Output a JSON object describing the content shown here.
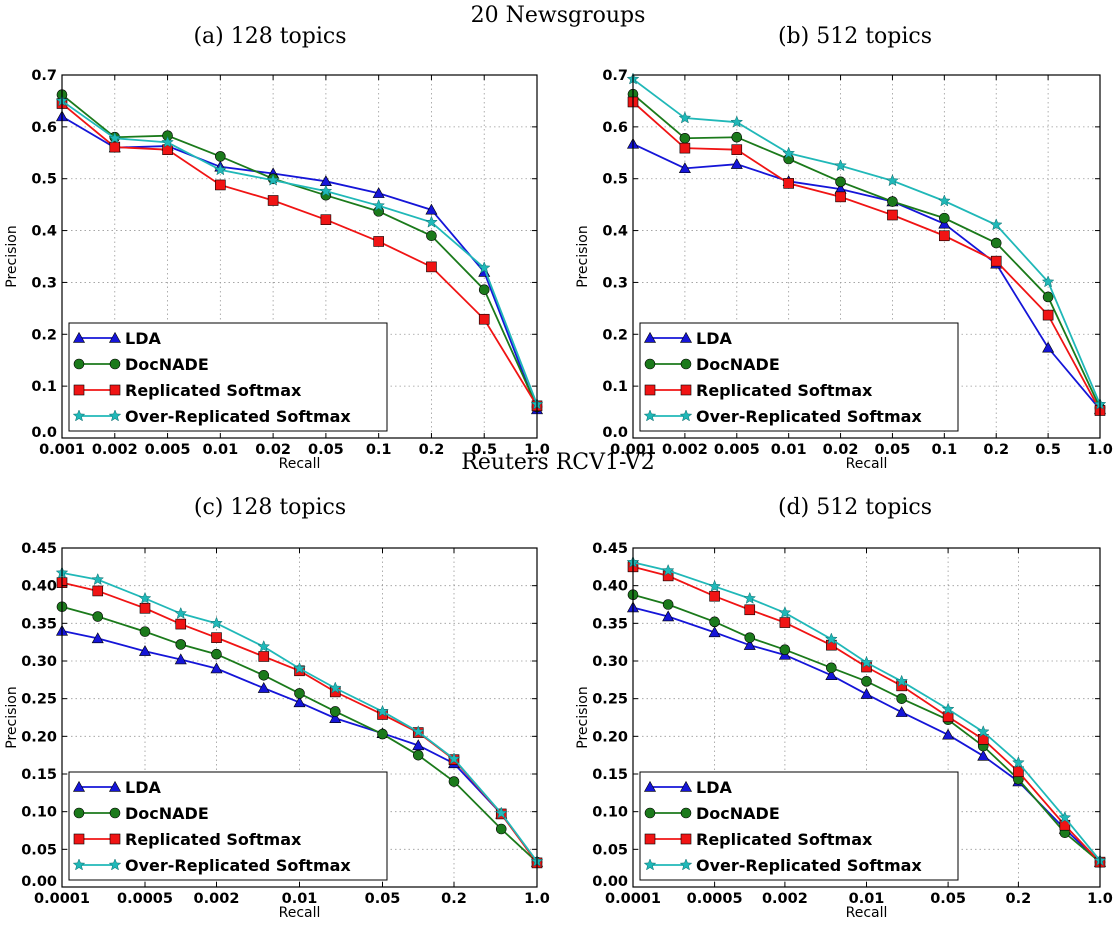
{
  "group_titles": [
    "20 Newsgroups",
    "Reuters RCV1-V2"
  ],
  "chart_data": [
    {
      "type": "line",
      "title": "(a) 128 topics",
      "xlabel": "Recall",
      "ylabel": "Precision",
      "x": [
        "0.001",
        "0.002",
        "0.005",
        "0.01",
        "0.02",
        "0.05",
        "0.1",
        "0.2",
        "0.5",
        "1.0"
      ],
      "ylim": [
        0,
        0.7
      ],
      "yticks": [
        "0.0",
        "0.1",
        "0.2",
        "0.3",
        "0.4",
        "0.5",
        "0.6",
        "0.7"
      ],
      "grid": true,
      "legend_position": "lower-left",
      "series": [
        {
          "name": "LDA",
          "color": "#1515d8",
          "marker": "triangle",
          "values": [
            0.62,
            0.56,
            0.563,
            0.523,
            0.51,
            0.495,
            0.472,
            0.44,
            0.32,
            0.055
          ]
        },
        {
          "name": "DocNADE",
          "color": "#1b7a1b",
          "marker": "circle",
          "values": [
            0.662,
            0.58,
            0.583,
            0.543,
            0.5,
            0.468,
            0.437,
            0.39,
            0.286,
            0.06
          ]
        },
        {
          "name": "Replicated Softmax",
          "color": "#f01414",
          "marker": "square",
          "values": [
            0.645,
            0.561,
            0.556,
            0.488,
            0.458,
            0.421,
            0.379,
            0.33,
            0.229,
            0.062
          ]
        },
        {
          "name": "Over-Replicated Softmax",
          "color": "#20b8b8",
          "marker": "star",
          "values": [
            0.65,
            0.578,
            0.57,
            0.517,
            0.497,
            0.476,
            0.448,
            0.416,
            0.328,
            0.065
          ]
        }
      ]
    },
    {
      "type": "line",
      "title": "(b) 512 topics",
      "xlabel": "Recall",
      "ylabel": "Precision",
      "x": [
        "0.001",
        "0.002",
        "0.005",
        "0.01",
        "0.02",
        "0.05",
        "0.1",
        "0.2",
        "0.5",
        "1.0"
      ],
      "ylim": [
        0,
        0.7
      ],
      "yticks": [
        "0.0",
        "0.1",
        "0.2",
        "0.3",
        "0.4",
        "0.5",
        "0.6",
        "0.7"
      ],
      "grid": true,
      "legend_position": "lower-left",
      "series": [
        {
          "name": "LDA",
          "color": "#1515d8",
          "marker": "triangle",
          "values": [
            0.567,
            0.52,
            0.528,
            0.495,
            0.48,
            0.456,
            0.413,
            0.336,
            0.174,
            0.055
          ]
        },
        {
          "name": "DocNADE",
          "color": "#1b7a1b",
          "marker": "circle",
          "values": [
            0.663,
            0.578,
            0.58,
            0.538,
            0.494,
            0.456,
            0.424,
            0.376,
            0.272,
            0.058
          ]
        },
        {
          "name": "Replicated Softmax",
          "color": "#f01414",
          "marker": "square",
          "values": [
            0.648,
            0.559,
            0.556,
            0.491,
            0.465,
            0.43,
            0.39,
            0.341,
            0.237,
            0.053
          ]
        },
        {
          "name": "Over-Replicated Softmax",
          "color": "#20b8b8",
          "marker": "star",
          "values": [
            0.692,
            0.617,
            0.609,
            0.549,
            0.525,
            0.496,
            0.457,
            0.411,
            0.301,
            0.065
          ]
        }
      ]
    },
    {
      "type": "line",
      "title": "(c) 128 topics",
      "xlabel": "Recall",
      "ylabel": "Precision",
      "x": [
        0.0001,
        0.0002,
        0.0005,
        0.001,
        0.002,
        0.005,
        0.01,
        0.02,
        0.05,
        0.1,
        0.2,
        0.5,
        1.0
      ],
      "xticks": [
        "0.0001",
        "0.0005",
        "0.002",
        "0.01",
        "0.05",
        "0.2",
        "1.0"
      ],
      "ylim": [
        0,
        0.45
      ],
      "yticks": [
        "0.00",
        "0.05",
        "0.10",
        "0.15",
        "0.20",
        "0.25",
        "0.30",
        "0.35",
        "0.40",
        "0.45"
      ],
      "grid": true,
      "legend_position": "lower-left",
      "series": [
        {
          "name": "LDA",
          "color": "#1515d8",
          "marker": "triangle",
          "values": [
            0.34,
            0.33,
            0.313,
            0.302,
            0.29,
            0.264,
            0.245,
            0.224,
            0.204,
            0.188,
            0.164,
            0.097,
            0.033
          ]
        },
        {
          "name": "DocNADE",
          "color": "#1b7a1b",
          "marker": "circle",
          "values": [
            0.372,
            0.359,
            0.339,
            0.322,
            0.309,
            0.281,
            0.257,
            0.233,
            0.203,
            0.175,
            0.14,
            0.077,
            0.033
          ]
        },
        {
          "name": "Replicated Softmax",
          "color": "#f01414",
          "marker": "square",
          "values": [
            0.404,
            0.393,
            0.37,
            0.349,
            0.331,
            0.306,
            0.287,
            0.259,
            0.229,
            0.205,
            0.169,
            0.097,
            0.032
          ]
        },
        {
          "name": "Over-Replicated Softmax",
          "color": "#20b8b8",
          "marker": "star",
          "values": [
            0.417,
            0.408,
            0.383,
            0.363,
            0.35,
            0.319,
            0.29,
            0.264,
            0.233,
            0.206,
            0.17,
            0.098,
            0.034
          ]
        }
      ]
    },
    {
      "type": "line",
      "title": "(d) 512 topics",
      "xlabel": "Recall",
      "ylabel": "Precision",
      "x": [
        0.0001,
        0.0002,
        0.0005,
        0.001,
        0.002,
        0.005,
        0.01,
        0.02,
        0.05,
        0.1,
        0.2,
        0.5,
        1.0
      ],
      "xticks": [
        "0.0001",
        "0.0005",
        "0.002",
        "0.01",
        "0.05",
        "0.2",
        "1.0"
      ],
      "ylim": [
        0,
        0.45
      ],
      "yticks": [
        "0.00",
        "0.05",
        "0.10",
        "0.15",
        "0.20",
        "0.25",
        "0.30",
        "0.35",
        "0.40",
        "0.45"
      ],
      "grid": true,
      "legend_position": "lower-left",
      "series": [
        {
          "name": "LDA",
          "color": "#1515d8",
          "marker": "triangle",
          "values": [
            0.371,
            0.359,
            0.338,
            0.321,
            0.308,
            0.281,
            0.256,
            0.232,
            0.202,
            0.174,
            0.14,
            0.077,
            0.033
          ]
        },
        {
          "name": "DocNADE",
          "color": "#1b7a1b",
          "marker": "circle",
          "values": [
            0.388,
            0.375,
            0.352,
            0.331,
            0.315,
            0.291,
            0.273,
            0.25,
            0.222,
            0.187,
            0.143,
            0.072,
            0.033
          ]
        },
        {
          "name": "Replicated Softmax",
          "color": "#f01414",
          "marker": "square",
          "values": [
            0.425,
            0.413,
            0.386,
            0.368,
            0.351,
            0.321,
            0.292,
            0.267,
            0.226,
            0.196,
            0.153,
            0.082,
            0.033
          ]
        },
        {
          "name": "Over-Replicated Softmax",
          "color": "#20b8b8",
          "marker": "star",
          "values": [
            0.431,
            0.42,
            0.399,
            0.383,
            0.364,
            0.329,
            0.298,
            0.273,
            0.236,
            0.206,
            0.165,
            0.092,
            0.035
          ]
        }
      ]
    }
  ]
}
